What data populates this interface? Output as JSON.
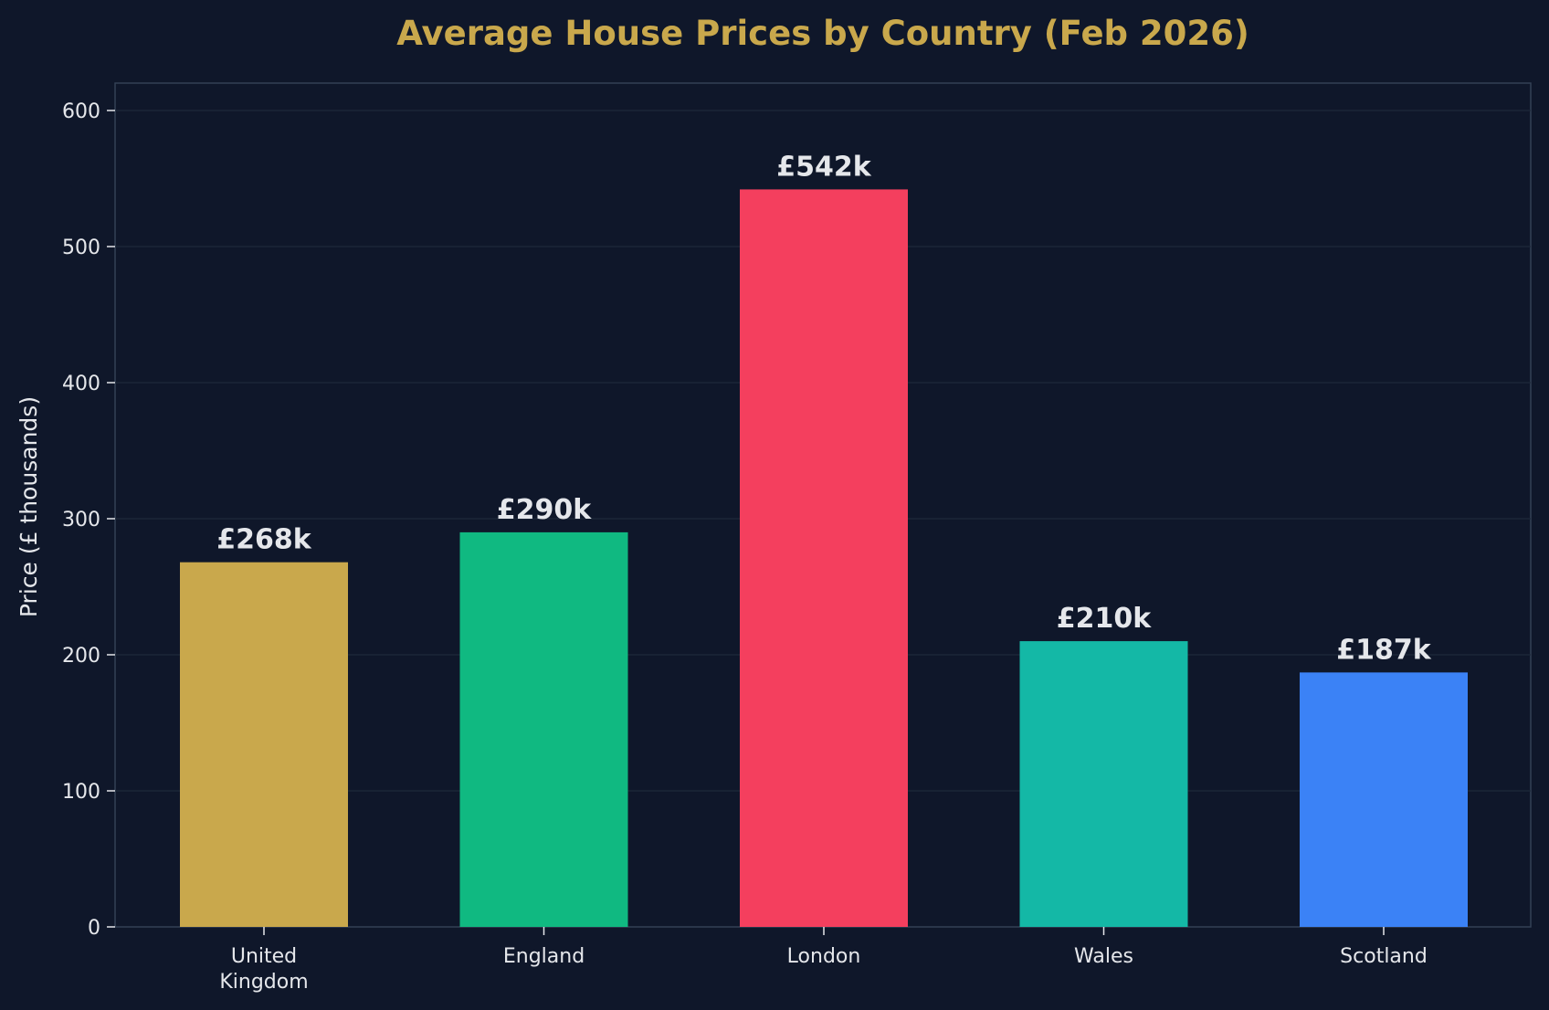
{
  "colors": {
    "background": "#0f172a",
    "title": "#c9a84c",
    "text": "#e5e7eb",
    "grid": "#1e293b",
    "spine": "#334155"
  },
  "chart_data": {
    "type": "bar",
    "title": "Average House Prices by Country (Feb 2026)",
    "xlabel": "",
    "ylabel": "Price (£ thousands)",
    "ylim": [
      0,
      620
    ],
    "yticks": [
      0,
      100,
      200,
      300,
      400,
      500,
      600
    ],
    "grid": true,
    "categories": [
      "United\nKingdom",
      "England",
      "London",
      "Wales",
      "Scotland"
    ],
    "values": [
      268,
      290,
      542,
      210,
      187
    ],
    "data_labels": [
      "£268k",
      "£290k",
      "£542k",
      "£210k",
      "£187k"
    ],
    "bar_colors": [
      "#c9a84c",
      "#10b981",
      "#f43f5e",
      "#14b8a6",
      "#3b82f6"
    ]
  }
}
